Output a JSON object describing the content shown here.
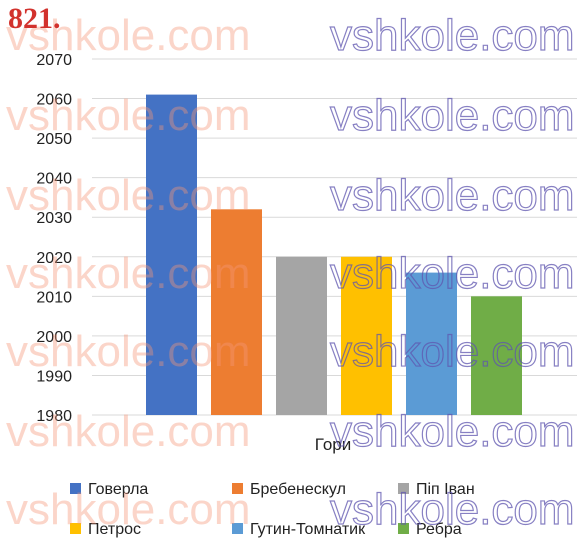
{
  "problem_number": "821.",
  "watermark_text": "vshkole.com",
  "chart_data": {
    "type": "bar",
    "categories": [
      "Говерла",
      "Бребенескул",
      "Піп Іван",
      "Петрос",
      "Гутин-Томнатик",
      "Ребра"
    ],
    "values": [
      2061,
      2032,
      2020,
      2020,
      2016,
      2010
    ],
    "colors": [
      "#4472c4",
      "#ed7d31",
      "#a5a5a5",
      "#ffc000",
      "#5b9bd5",
      "#70ad47"
    ],
    "title": "",
    "xlabel": "Гори",
    "ylabel": "",
    "ylim": [
      1980,
      2070
    ],
    "yticks": [
      1980,
      1990,
      2000,
      2010,
      2020,
      2030,
      2040,
      2050,
      2060,
      2070
    ],
    "grid": true,
    "legend": {
      "placement": "bottom",
      "entries": [
        "Говерла",
        "Бребенескул",
        "Піп Іван",
        "Петрос",
        "Гутин-Томнатик",
        "Ребра"
      ]
    }
  }
}
